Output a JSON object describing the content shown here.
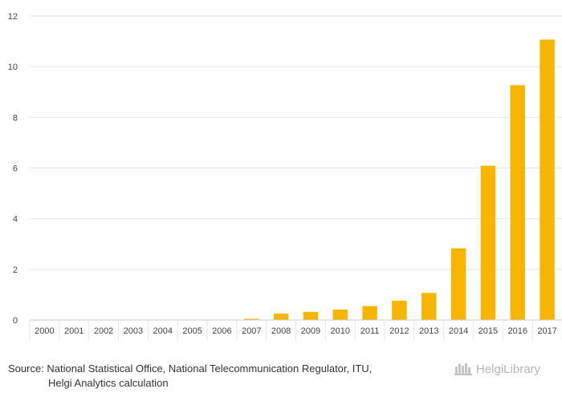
{
  "chart_data": {
    "type": "bar",
    "categories": [
      "2000",
      "2001",
      "2002",
      "2003",
      "2004",
      "2005",
      "2006",
      "2007",
      "2008",
      "2009",
      "2010",
      "2011",
      "2012",
      "2013",
      "2014",
      "2015",
      "2016",
      "2017"
    ],
    "values": [
      0,
      0,
      0,
      0,
      0,
      0,
      0,
      0.05,
      0.25,
      0.32,
      0.41,
      0.55,
      0.76,
      1.07,
      2.83,
      6.09,
      9.27,
      11.07
    ],
    "title": "",
    "xlabel": "",
    "ylabel": "",
    "ylim": [
      0,
      12
    ],
    "yticks": [
      0,
      2,
      4,
      6,
      8,
      10,
      12
    ],
    "grid": true,
    "bar_color": "#f7b500",
    "grid_color": "#e6e6e6",
    "axis_color": "#cccccc"
  },
  "source": {
    "line1": "Source: National Statistical Office, National Telecommunication Regulator, ITU,",
    "line2": "Helgi Analytics calculation"
  },
  "logo": {
    "text": "HelgiLibrary",
    "icon": "library-books-icon",
    "color": "#b5b5b5"
  }
}
